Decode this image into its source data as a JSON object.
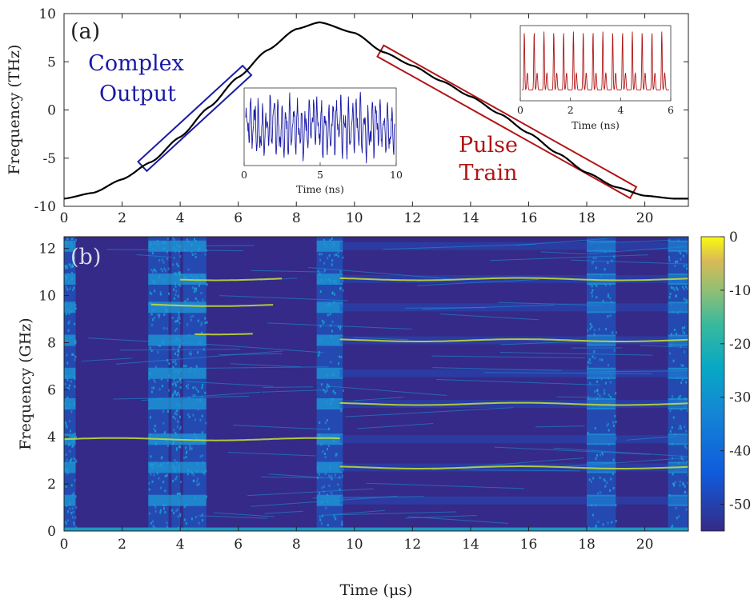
{
  "chart_data": [
    {
      "panel": "(a)",
      "type": "line",
      "ylabel": "Frequency (THz)",
      "xlim": [
        0,
        21.5
      ],
      "ylim": [
        -10,
        10
      ],
      "xticks": [
        "0",
        "2",
        "4",
        "6",
        "8",
        "10",
        "12",
        "14",
        "16",
        "18",
        "20"
      ],
      "yticks": [
        "10",
        "5",
        "0",
        "-5",
        "-10"
      ],
      "curve": {
        "description": "cosine-like frequency sweep",
        "x": [
          0,
          1,
          2,
          3,
          4,
          5,
          6,
          7,
          8,
          8.8,
          10,
          11,
          12,
          13,
          14,
          15,
          16,
          17,
          18,
          19,
          20,
          21,
          21.5
        ],
        "y": [
          -9.2,
          -8.6,
          -7.2,
          -5.4,
          -2.8,
          0.3,
          3.4,
          6.2,
          8.4,
          9.1,
          8.0,
          6.0,
          4.6,
          3.0,
          1.4,
          -0.4,
          -2.4,
          -4.5,
          -6.5,
          -8.0,
          -8.9,
          -9.2,
          -9.2
        ]
      },
      "annotations": [
        {
          "name": "complex-output",
          "label_lines": [
            "Complex",
            "Output"
          ],
          "color": "#1a1aa6",
          "x_range": [
            2.7,
            6.3
          ]
        },
        {
          "name": "pulse-train",
          "label_lines": [
            "Pulse",
            "Train"
          ],
          "color": "#b01616",
          "x_range": [
            10.9,
            19.6
          ]
        }
      ],
      "insets": [
        {
          "name": "complex-output-inset",
          "type": "line",
          "color": "#1a1aa6",
          "xlabel": "Time (ns)",
          "xlim": [
            0,
            10
          ],
          "xticks": [
            "0",
            "5",
            "10"
          ],
          "signal": "irregular oscillation (complex output waveform)"
        },
        {
          "name": "pulse-train-inset",
          "type": "line",
          "color": "#b01616",
          "xlabel": "Time (ns)",
          "xlim": [
            0,
            6
          ],
          "xticks": [
            "0",
            "2",
            "4",
            "6"
          ],
          "signal": "periodic pulse train, about 15 pulses in 6 ns"
        }
      ]
    },
    {
      "panel": "(b)",
      "type": "heatmap",
      "xlabel": "Time (μs)",
      "ylabel": "Frequency (GHz)",
      "xlim": [
        0,
        21.5
      ],
      "ylim": [
        0,
        12.5
      ],
      "xticks": [
        "0",
        "2",
        "4",
        "6",
        "8",
        "10",
        "12",
        "14",
        "16",
        "18",
        "20"
      ],
      "yticks": [
        "12",
        "10",
        "8",
        "6",
        "4",
        "2",
        "0"
      ],
      "colorbar": {
        "ticks": [
          "0",
          "-10",
          "-20",
          "-30",
          "-40",
          "-50"
        ],
        "range": [
          -55,
          0
        ],
        "colormap": "parula"
      },
      "strong_lines": [
        {
          "x_range": [
            0,
            9.5
          ],
          "y": 3.9
        },
        {
          "x_range": [
            9.5,
            21.5
          ],
          "y": 2.7
        },
        {
          "x_range": [
            9.5,
            21.5
          ],
          "y": 5.4
        },
        {
          "x_range": [
            9.5,
            21.5
          ],
          "y": 8.1
        },
        {
          "x_range": [
            9.5,
            21.5
          ],
          "y": 10.7
        },
        {
          "x_range": [
            4.0,
            7.5
          ],
          "y": 10.7
        },
        {
          "x_range": [
            3.0,
            7.2
          ],
          "y": 9.6
        },
        {
          "x_range": [
            4.5,
            6.5
          ],
          "y": 8.4
        }
      ],
      "bright_bands_x": [
        [
          0,
          0.4
        ],
        [
          2.9,
          3.6
        ],
        [
          3.7,
          4.0
        ],
        [
          4.1,
          4.9
        ],
        [
          8.7,
          9.6
        ],
        [
          18.0,
          19.0
        ],
        [
          20.8,
          21.5
        ]
      ]
    }
  ],
  "colors": {
    "curve": "#000000",
    "heat_bg": "#352a87",
    "heat_mid": "#0f6fd0",
    "heat_cyan": "#16b9d6",
    "heat_hot": "#d7e41e"
  }
}
